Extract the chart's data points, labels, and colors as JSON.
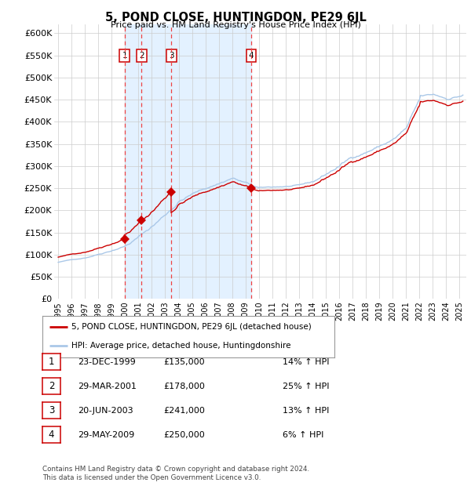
{
  "title": "5, POND CLOSE, HUNTINGDON, PE29 6JL",
  "subtitle": "Price paid vs. HM Land Registry's House Price Index (HPI)",
  "legend_line1": "5, POND CLOSE, HUNTINGDON, PE29 6JL (detached house)",
  "legend_line2": "HPI: Average price, detached house, Huntingdonshire",
  "footnote1": "Contains HM Land Registry data © Crown copyright and database right 2024.",
  "footnote2": "This data is licensed under the Open Government Licence v3.0.",
  "sales": [
    {
      "num": 1,
      "date_yr": 1999.96,
      "price": 135000,
      "label": "23-DEC-1999",
      "pct": "14%"
    },
    {
      "num": 2,
      "date_yr": 2001.24,
      "price": 178000,
      "label": "29-MAR-2001",
      "pct": "25%"
    },
    {
      "num": 3,
      "date_yr": 2003.47,
      "price": 241000,
      "label": "20-JUN-2003",
      "pct": "13%"
    },
    {
      "num": 4,
      "date_yr": 2009.41,
      "price": 250000,
      "label": "29-MAY-2009",
      "pct": "6%"
    }
  ],
  "table_rows": [
    [
      "1",
      "23-DEC-1999",
      "£135,000",
      "14% ↑ HPI"
    ],
    [
      "2",
      "29-MAR-2001",
      "£178,000",
      "25% ↑ HPI"
    ],
    [
      "3",
      "20-JUN-2003",
      "£241,000",
      "13% ↑ HPI"
    ],
    [
      "4",
      "29-MAY-2009",
      "£250,000",
      "6% ↑ HPI"
    ]
  ],
  "hpi_color": "#aac8e8",
  "price_color": "#cc0000",
  "sale_marker_color": "#cc0000",
  "dashed_line_color": "#ee4444",
  "shade_color": "#ddeeff",
  "background_color": "#ffffff",
  "grid_color": "#cccccc",
  "ylim": [
    0,
    620000
  ],
  "yticks": [
    0,
    50000,
    100000,
    150000,
    200000,
    250000,
    300000,
    350000,
    400000,
    450000,
    500000,
    550000,
    600000
  ],
  "xstart": 1994.7,
  "xend": 2025.5
}
